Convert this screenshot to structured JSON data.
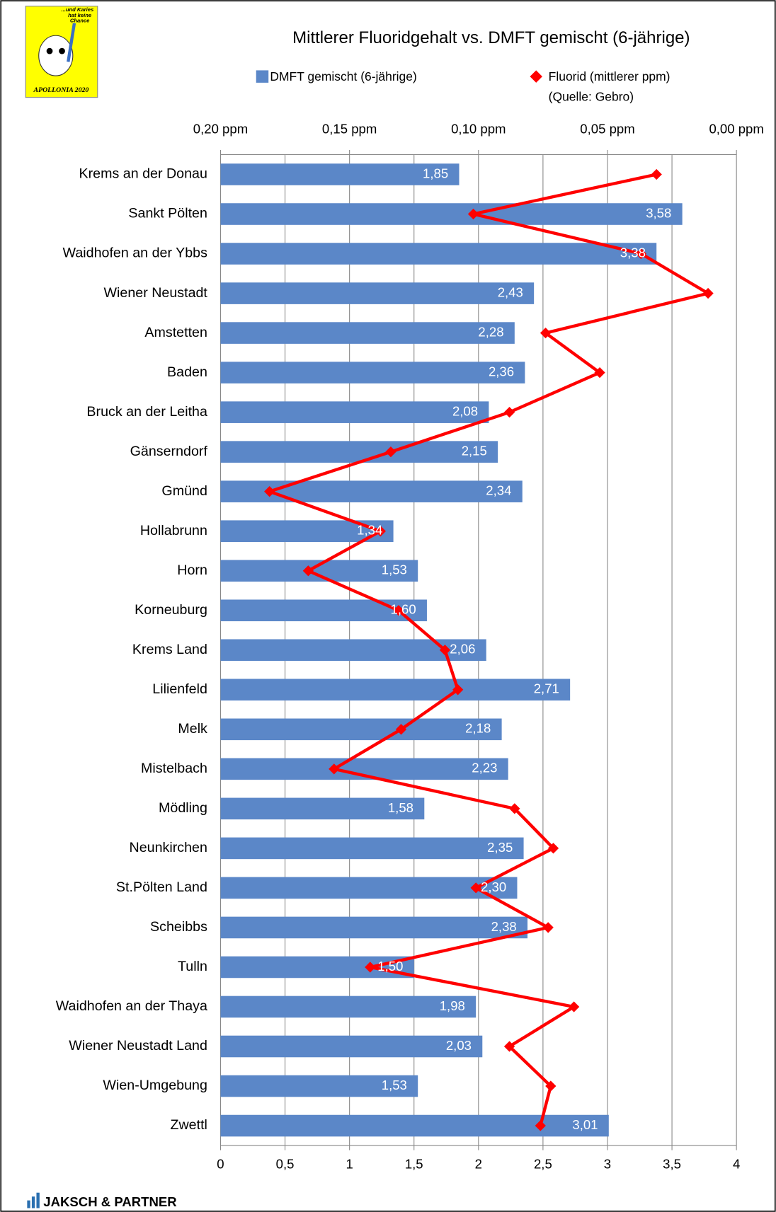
{
  "logo": {
    "lines": [
      "...und Karies",
      "hat keine",
      "Chance"
    ],
    "name": "APOLLONIA 2020"
  },
  "footer": "JAKSCH & PARTNER",
  "chart_data": {
    "type": "bar",
    "orientation": "horizontal",
    "title": "Mittlerer Fluoridgehalt vs. DMFT gemischt (6-jährige)",
    "legend_note": "(Quelle: Gebro)",
    "categories": [
      "Krems an der Donau",
      "Sankt Pölten",
      "Waidhofen an der Ybbs",
      "Wiener Neustadt",
      "Amstetten",
      "Baden",
      "Bruck an der Leitha",
      "Gänserndorf",
      "Gmünd",
      "Hollabrunn",
      "Horn",
      "Korneuburg",
      "Krems Land",
      "Lilienfeld",
      "Melk",
      "Mistelbach",
      "Mödling",
      "Neunkirchen",
      "St.Pölten Land",
      "Scheibbs",
      "Tulln",
      "Waidhofen an der Thaya",
      "Wiener Neustadt Land",
      "Wien-Umgebung",
      "Zwettl"
    ],
    "series": [
      {
        "name": "DMFT gemischt (6-jährige)",
        "type": "bar",
        "color": "#5b87c8",
        "values": [
          1.85,
          3.58,
          3.38,
          2.43,
          2.28,
          2.36,
          2.08,
          2.15,
          2.34,
          1.34,
          1.53,
          1.6,
          2.06,
          2.71,
          2.18,
          2.23,
          1.58,
          2.35,
          2.3,
          2.38,
          1.5,
          1.98,
          2.03,
          1.53,
          3.01
        ],
        "value_labels": [
          "1,85",
          "3,58",
          "3,38",
          "2,43",
          "2,28",
          "2,36",
          "2,08",
          "2,15",
          "2,34",
          "1,34",
          "1,53",
          "1,60",
          "2,06",
          "2,71",
          "2,18",
          "2,23",
          "1,58",
          "2,35",
          "2,30",
          "2,38",
          "1,50",
          "1,98",
          "2,03",
          "1,53",
          "3,01"
        ]
      },
      {
        "name": "Fluorid (mittlerer ppm)",
        "type": "line",
        "axis": "x2",
        "color": "#ff0000",
        "values": [
          0.031,
          0.102,
          0.037,
          0.011,
          0.074,
          0.053,
          0.088,
          0.134,
          0.181,
          0.138,
          0.166,
          0.131,
          0.113,
          0.108,
          0.13,
          0.156,
          0.086,
          0.071,
          0.101,
          0.073,
          0.142,
          0.063,
          0.088,
          0.072,
          0.076
        ]
      }
    ],
    "xlim": [
      0,
      4
    ],
    "xticks": [
      0,
      {
        "value": 0.5,
        "label": "0,5"
      },
      1,
      {
        "value": 1.5,
        "label": "1,5"
      },
      2,
      {
        "value": 2.5,
        "label": "2,5"
      },
      3,
      {
        "value": 3.5,
        "label": "3,5"
      },
      4
    ],
    "x2lim": [
      0.2,
      0
    ],
    "x2ticks": [
      {
        "value": 0.2,
        "label": "0,20 ppm"
      },
      {
        "value": 0.15,
        "label": "0,15 ppm"
      },
      {
        "value": 0.1,
        "label": "0,10 ppm"
      },
      {
        "value": 0.05,
        "label": "0,05 ppm"
      },
      {
        "value": 0,
        "label": "0,00 ppm"
      }
    ],
    "grid": true
  }
}
